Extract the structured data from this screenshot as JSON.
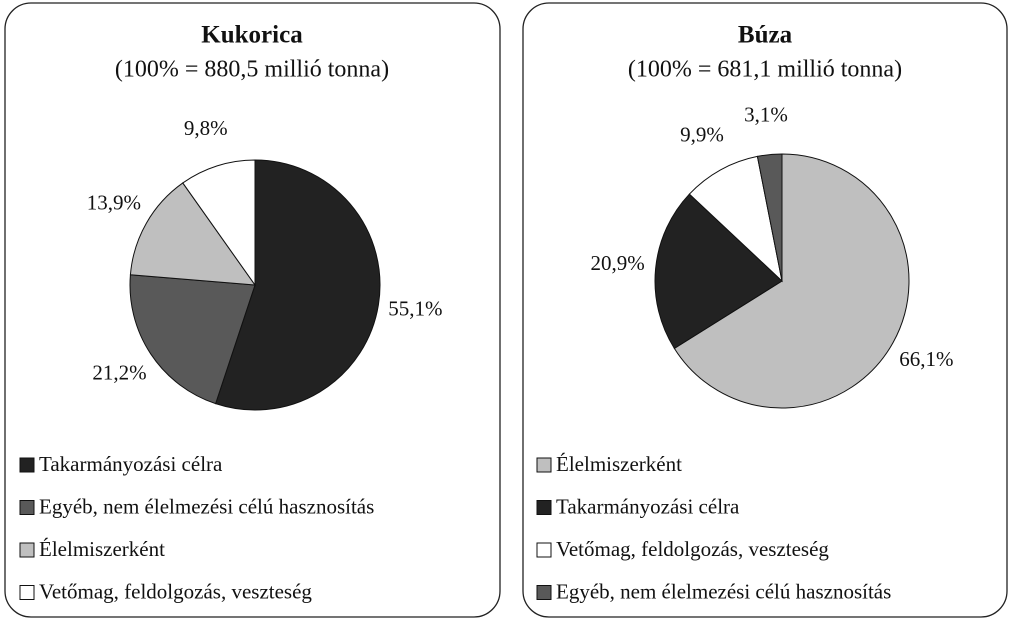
{
  "chart_data": [
    {
      "type": "pie",
      "title": "Kukorica",
      "subtitle": "(100% = 880,5 millió tonna)",
      "categories": [
        "Takarmányozási célra",
        "Egyéb, nem élelmezési célú hasznosítás",
        "Élelmiszerként",
        "Vetőmag, feldolgozás, veszteség"
      ],
      "values": [
        55.1,
        21.2,
        13.9,
        9.8
      ],
      "value_labels": [
        "55,1%",
        "21,2%",
        "13,9%",
        "9,8%"
      ],
      "colors": [
        "#222222",
        "#595959",
        "#bfbfbf",
        "#ffffff"
      ]
    },
    {
      "type": "pie",
      "title": "Búza",
      "subtitle": "(100% = 681,1 millió tonna)",
      "categories": [
        "Élelmiszerként",
        "Takarmányozási célra",
        "Vetőmag, feldolgozás, veszteség",
        "Egyéb, nem élelmezési célú hasznosítás"
      ],
      "values": [
        66.1,
        20.9,
        9.9,
        3.1
      ],
      "value_labels": [
        "66,1%",
        "20,9%",
        "9,9%",
        "3,1%"
      ],
      "colors": [
        "#bfbfbf",
        "#222222",
        "#ffffff",
        "#595959"
      ]
    }
  ]
}
